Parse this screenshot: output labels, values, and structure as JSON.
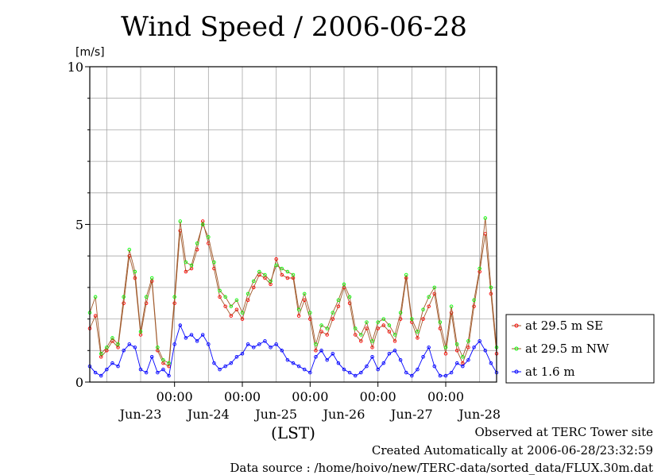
{
  "title": "Wind Speed / 2006-06-28",
  "footer": {
    "observed": "Observed at TERC Tower site",
    "created": "Created Automatically at 2006-06-28/23:32:59",
    "source": "Data source : /home/hoivo/new/TERC-data/sorted_data/FLUX.30m.dat"
  },
  "chart_data": {
    "type": "line",
    "title": "Wind Speed / 2006-06-28",
    "ylabel": "[m/s]",
    "xlabel": "(LST)",
    "ylim": [
      0,
      10
    ],
    "y_ticks": [
      0,
      5,
      10
    ],
    "xlim": [
      -30,
      114
    ],
    "time_ticks": [
      "00:00",
      "00:00",
      "00:00",
      "00:00",
      "00:00"
    ],
    "time_tick_hours": [
      0,
      24,
      48,
      72,
      96
    ],
    "date_labels": [
      "Jun-23",
      "Jun-24",
      "Jun-25",
      "Jun-26",
      "Jun-27",
      "Jun-28"
    ],
    "date_label_hours": [
      -12,
      12,
      36,
      60,
      84,
      108
    ],
    "grid": true,
    "legend_position": "right",
    "series": [
      {
        "name": "at 29.5 m SE",
        "color": "#ff0000",
        "line_color": "#a05a2c",
        "marker": "circle",
        "x": [
          -30,
          -28,
          -26,
          -24,
          -22,
          -20,
          -18,
          -16,
          -14,
          -12,
          -10,
          -8,
          -6,
          -4,
          -2,
          0,
          2,
          4,
          6,
          8,
          10,
          12,
          14,
          16,
          18,
          20,
          22,
          24,
          26,
          28,
          30,
          32,
          34,
          36,
          38,
          40,
          42,
          44,
          46,
          48,
          50,
          52,
          54,
          56,
          58,
          60,
          62,
          64,
          66,
          68,
          70,
          72,
          74,
          76,
          78,
          80,
          82,
          84,
          86,
          88,
          90,
          92,
          94,
          96,
          98,
          100,
          102,
          104,
          106,
          108,
          110,
          112,
          114
        ],
        "y": [
          1.7,
          2.1,
          0.8,
          1.0,
          1.3,
          1.1,
          2.5,
          4.0,
          3.3,
          1.5,
          2.5,
          3.2,
          1.0,
          0.6,
          0.5,
          2.5,
          4.8,
          3.5,
          3.6,
          4.2,
          5.1,
          4.4,
          3.6,
          2.7,
          2.4,
          2.1,
          2.3,
          2.0,
          2.6,
          3.0,
          3.4,
          3.3,
          3.1,
          3.9,
          3.4,
          3.3,
          3.3,
          2.1,
          2.6,
          2.0,
          1.0,
          1.6,
          1.5,
          2.0,
          2.4,
          3.0,
          2.5,
          1.5,
          1.3,
          1.7,
          1.1,
          1.7,
          1.8,
          1.6,
          1.3,
          2.0,
          3.3,
          1.9,
          1.4,
          2.0,
          2.4,
          2.8,
          1.7,
          0.9,
          2.2,
          1.0,
          0.6,
          1.1,
          2.4,
          3.5,
          4.7,
          2.8,
          0.9
        ]
      },
      {
        "name": "at 29.5 m NW",
        "color": "#00ff00",
        "line_color": "#a05a2c",
        "marker": "circle",
        "x": [
          -30,
          -28,
          -26,
          -24,
          -22,
          -20,
          -18,
          -16,
          -14,
          -12,
          -10,
          -8,
          -6,
          -4,
          -2,
          0,
          2,
          4,
          6,
          8,
          10,
          12,
          14,
          16,
          18,
          20,
          22,
          24,
          26,
          28,
          30,
          32,
          34,
          36,
          38,
          40,
          42,
          44,
          46,
          48,
          50,
          52,
          54,
          56,
          58,
          60,
          62,
          64,
          66,
          68,
          70,
          72,
          74,
          76,
          78,
          80,
          82,
          84,
          86,
          88,
          90,
          92,
          94,
          96,
          98,
          100,
          102,
          104,
          106,
          108,
          110,
          112,
          114
        ],
        "y": [
          2.2,
          2.7,
          0.9,
          1.1,
          1.4,
          1.2,
          2.7,
          4.2,
          3.5,
          1.6,
          2.7,
          3.3,
          1.1,
          0.7,
          0.6,
          2.7,
          5.1,
          3.8,
          3.7,
          4.4,
          5.0,
          4.6,
          3.8,
          2.9,
          2.7,
          2.4,
          2.6,
          2.2,
          2.8,
          3.2,
          3.5,
          3.4,
          3.2,
          3.7,
          3.6,
          3.5,
          3.4,
          2.3,
          2.8,
          2.2,
          1.2,
          1.8,
          1.7,
          2.2,
          2.6,
          3.1,
          2.7,
          1.7,
          1.5,
          1.9,
          1.3,
          1.9,
          2.0,
          1.8,
          1.5,
          2.2,
          3.4,
          2.0,
          1.6,
          2.3,
          2.7,
          3.0,
          1.9,
          1.1,
          2.4,
          1.2,
          0.8,
          1.3,
          2.6,
          3.6,
          5.2,
          3.0,
          1.1
        ]
      },
      {
        "name": "at 1.6 m",
        "color": "#0000ff",
        "line_color": "#0000ff",
        "marker": "circle",
        "x": [
          -30,
          -28,
          -26,
          -24,
          -22,
          -20,
          -18,
          -16,
          -14,
          -12,
          -10,
          -8,
          -6,
          -4,
          -2,
          0,
          2,
          4,
          6,
          8,
          10,
          12,
          14,
          16,
          18,
          20,
          22,
          24,
          26,
          28,
          30,
          32,
          34,
          36,
          38,
          40,
          42,
          44,
          46,
          48,
          50,
          52,
          54,
          56,
          58,
          60,
          62,
          64,
          66,
          68,
          70,
          72,
          74,
          76,
          78,
          80,
          82,
          84,
          86,
          88,
          90,
          92,
          94,
          96,
          98,
          100,
          102,
          104,
          106,
          108,
          110,
          112,
          114
        ],
        "y": [
          0.5,
          0.3,
          0.2,
          0.4,
          0.6,
          0.5,
          1.0,
          1.2,
          1.1,
          0.4,
          0.3,
          0.8,
          0.3,
          0.4,
          0.2,
          1.2,
          1.8,
          1.4,
          1.5,
          1.3,
          1.5,
          1.2,
          0.6,
          0.4,
          0.5,
          0.6,
          0.8,
          0.9,
          1.2,
          1.1,
          1.2,
          1.3,
          1.1,
          1.2,
          1.0,
          0.7,
          0.6,
          0.5,
          0.4,
          0.3,
          0.8,
          1.0,
          0.7,
          0.9,
          0.6,
          0.4,
          0.3,
          0.2,
          0.3,
          0.5,
          0.8,
          0.4,
          0.6,
          0.9,
          1.0,
          0.7,
          0.3,
          0.2,
          0.4,
          0.8,
          1.1,
          0.5,
          0.2,
          0.2,
          0.3,
          0.6,
          0.5,
          0.7,
          1.1,
          1.3,
          1.0,
          0.6,
          0.3
        ]
      }
    ]
  }
}
